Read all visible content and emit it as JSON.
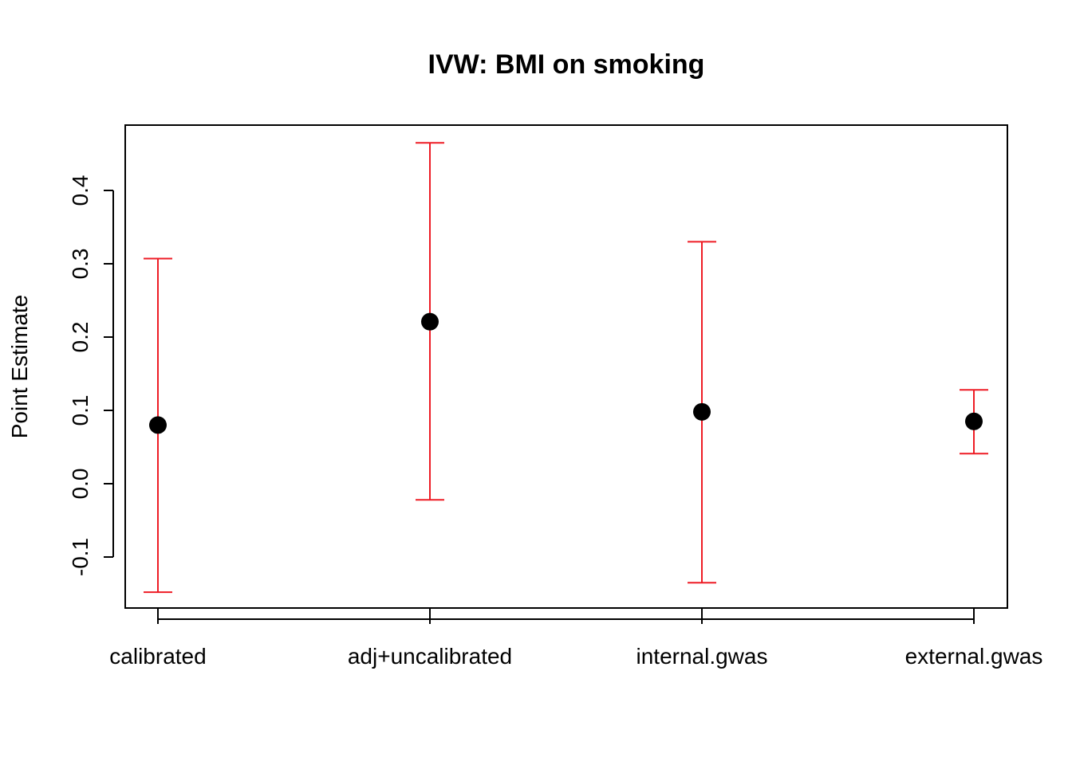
{
  "chart_data": {
    "type": "scatter",
    "title": "IVW: BMI on smoking",
    "xlabel": "",
    "ylabel": "Point Estimate",
    "categories": [
      "calibrated",
      "adj+uncalibrated",
      "internal.gwas",
      "external.gwas"
    ],
    "estimates": [
      0.08,
      0.221,
      0.098,
      0.085
    ],
    "lower": [
      -0.148,
      -0.022,
      -0.135,
      0.041
    ],
    "upper": [
      0.307,
      0.465,
      0.33,
      0.128
    ],
    "yticks": [
      -0.1,
      0.0,
      0.1,
      0.2,
      0.3,
      0.4
    ],
    "ytick_labels": [
      "-0.1",
      "0.0",
      "0.1",
      "0.2",
      "0.3",
      "0.4"
    ],
    "ylim": [
      -0.17,
      0.49
    ],
    "grid": false,
    "colors": {
      "point": "#000000",
      "error_bar": "#ee1c25",
      "axis": "#000000"
    }
  }
}
